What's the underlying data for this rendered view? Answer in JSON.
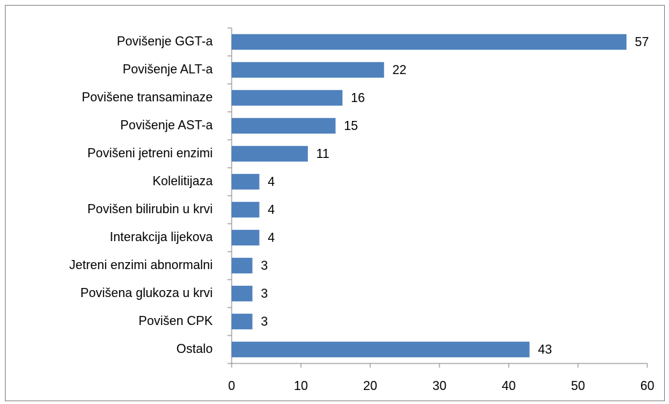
{
  "chart_data": {
    "type": "bar",
    "orientation": "horizontal",
    "categories": [
      "Povišenje GGT-a",
      "Povišenje ALT-a",
      "Povišene transaminaze",
      "Povišenje AST-a",
      "Povišeni jetreni enzimi",
      "Kolelitijaza",
      "Povišen bilirubin u krvi",
      "Interakcija lijekova",
      "Jetreni enzimi abnormalni",
      "Povišena glukoza u krvi",
      "Povišen CPK",
      "Ostalo"
    ],
    "values": [
      57,
      22,
      16,
      15,
      11,
      4,
      4,
      4,
      3,
      3,
      3,
      43
    ],
    "color": "#4f81bd",
    "xlim": [
      0,
      60
    ],
    "xticks": [
      0,
      10,
      20,
      30,
      40,
      50,
      60
    ],
    "grid": false
  }
}
